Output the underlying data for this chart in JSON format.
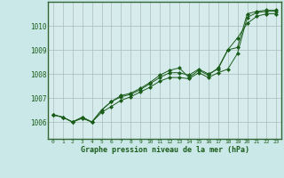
{
  "title": "Graphe pression niveau de la mer (hPa)",
  "bg_color": "#cbe8e8",
  "plot_bg_color": "#d6ecec",
  "line_color": "#1a5c1a",
  "grid_color": "#aabcbc",
  "border_color": "#336633",
  "xlim": [
    -0.5,
    23.5
  ],
  "ylim": [
    1005.3,
    1011.0
  ],
  "yticks": [
    1006,
    1007,
    1008,
    1009,
    1010
  ],
  "xticks": [
    0,
    1,
    2,
    3,
    4,
    5,
    6,
    7,
    8,
    9,
    10,
    11,
    12,
    13,
    14,
    15,
    16,
    17,
    18,
    19,
    20,
    21,
    22,
    23
  ],
  "series1": [
    1006.3,
    1006.2,
    1006.0,
    1006.2,
    1006.0,
    1006.4,
    1006.65,
    1006.9,
    1007.05,
    1007.25,
    1007.45,
    1007.7,
    1007.85,
    1007.85,
    1007.8,
    1008.05,
    1007.85,
    1008.05,
    1008.2,
    1008.85,
    1010.35,
    1010.55,
    1010.6,
    1010.6
  ],
  "series2": [
    1006.3,
    1006.2,
    1006.0,
    1006.15,
    1006.0,
    1006.5,
    1006.85,
    1007.05,
    1007.15,
    1007.35,
    1007.6,
    1007.85,
    1008.05,
    1008.05,
    1007.95,
    1008.2,
    1008.0,
    1008.2,
    1009.0,
    1009.5,
    1010.1,
    1010.4,
    1010.5,
    1010.5
  ],
  "series3": [
    1006.3,
    1006.2,
    1006.0,
    1006.2,
    1006.0,
    1006.5,
    1006.85,
    1007.1,
    1007.2,
    1007.4,
    1007.65,
    1007.95,
    1008.15,
    1008.25,
    1007.85,
    1008.15,
    1007.95,
    1008.25,
    1009.0,
    1009.1,
    1010.5,
    1010.6,
    1010.65,
    1010.65
  ]
}
